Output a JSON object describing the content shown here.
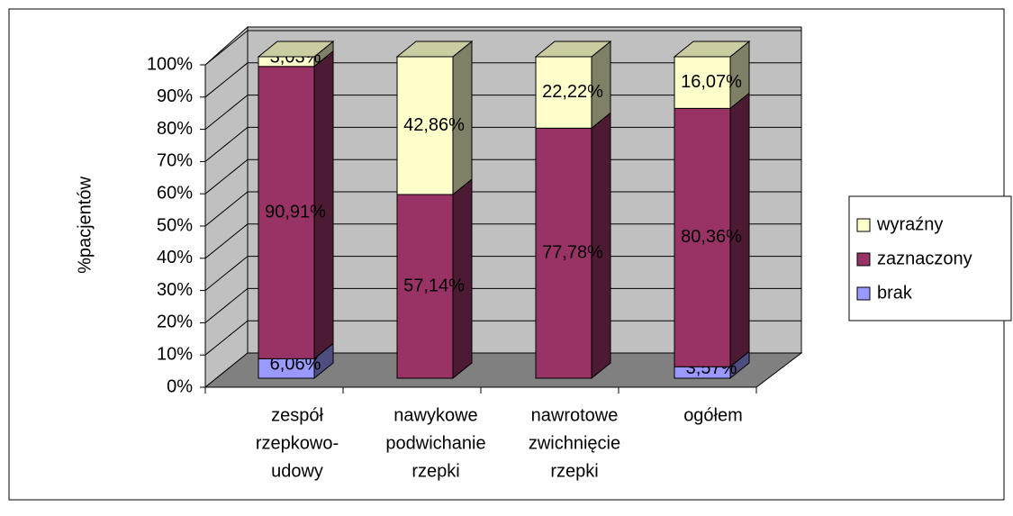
{
  "chart_data": {
    "type": "bar3d_stacked",
    "y_label": "%pacjentów",
    "categories": [
      [
        "zespół",
        "rzepkowo-",
        "udowy"
      ],
      [
        "nawykowe",
        "podwichanie",
        "rzepki"
      ],
      [
        "nawrotowe",
        "zwichnięcie",
        "rzepki"
      ],
      [
        "ogółem"
      ]
    ],
    "series": [
      {
        "name": "brak",
        "color": "#9999FF",
        "values": [
          6.06,
          0,
          0,
          3.57
        ],
        "value_labels": [
          "6,06%",
          null,
          null,
          "3,57%"
        ]
      },
      {
        "name": "zaznaczony",
        "color": "#993366",
        "values": [
          90.91,
          57.14,
          77.78,
          80.36
        ],
        "value_labels": [
          "90,91%",
          "57,14%",
          "77,78%",
          "80,36%"
        ]
      },
      {
        "name": "wyraźny",
        "color": "#FFFFCC",
        "values": [
          3.03,
          42.86,
          22.22,
          16.07
        ],
        "value_labels": [
          "3,03%",
          "42,86%",
          "22,22%",
          "16,07%"
        ]
      }
    ],
    "ylim": [
      0,
      100
    ],
    "yticks": [
      {
        "value": 0,
        "label": "0%"
      },
      {
        "value": 10,
        "label": "10%"
      },
      {
        "value": 20,
        "label": "20%"
      },
      {
        "value": 30,
        "label": "30%"
      },
      {
        "value": 40,
        "label": "40%"
      },
      {
        "value": 50,
        "label": "50%"
      },
      {
        "value": 60,
        "label": "60%"
      },
      {
        "value": 70,
        "label": "70%"
      },
      {
        "value": 80,
        "label": "80%"
      },
      {
        "value": 90,
        "label": "90%"
      },
      {
        "value": 100,
        "label": "100%"
      }
    ],
    "grid": true,
    "legend": "right"
  }
}
